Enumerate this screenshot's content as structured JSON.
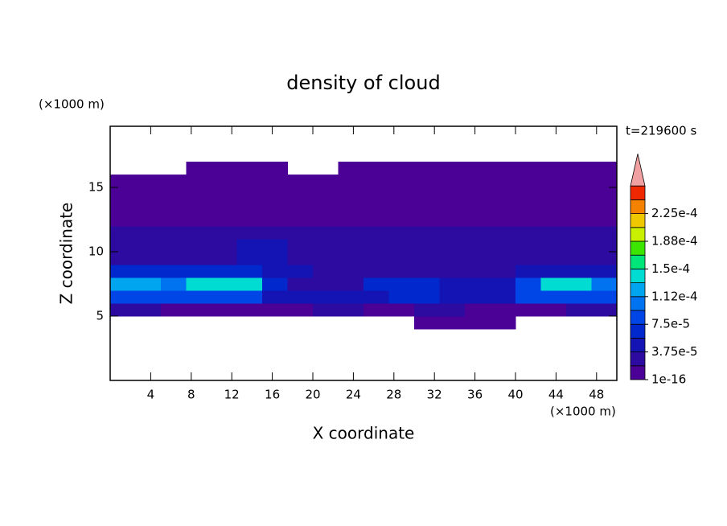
{
  "chart_data": {
    "type": "contour",
    "title": "density of cloud",
    "y_unit": "(×1000 m)",
    "x_unit": "(×1000 m)",
    "time_label": "t=219600 s",
    "xlabel": "X coordinate",
    "ylabel": "Z coordinate",
    "xlim": [
      0,
      50
    ],
    "ylim": [
      0,
      19.75
    ],
    "xticks": [
      4,
      8,
      12,
      16,
      20,
      24,
      28,
      32,
      36,
      40,
      44,
      48
    ],
    "yticks": [
      5,
      10,
      15
    ],
    "x": [
      1.25,
      3.75,
      6.25,
      8.75,
      11.25,
      13.75,
      16.25,
      18.75,
      21.25,
      23.75,
      26.25,
      28.75,
      31.25,
      33.75,
      36.25,
      38.75,
      41.25,
      43.75,
      46.25,
      48.75
    ],
    "y": [
      4.5,
      5.5,
      6.5,
      7.5,
      8.5,
      9.5,
      10.5,
      11.5,
      12.5,
      13.5,
      14.5,
      15.5,
      16.5
    ],
    "values": [
      [
        null,
        null,
        null,
        null,
        null,
        null,
        null,
        null,
        null,
        null,
        null,
        null,
        5e-06,
        5e-06,
        5e-06,
        5e-06,
        null,
        null,
        null,
        null
      ],
      [
        2e-05,
        2e-05,
        5e-06,
        5e-06,
        5e-06,
        5e-06,
        5e-06,
        5e-06,
        2e-05,
        2e-05,
        5e-06,
        5e-06,
        2e-05,
        2e-05,
        5e-06,
        5e-06,
        5e-06,
        5e-06,
        2e-05,
        2e-05
      ],
      [
        9e-05,
        9e-05,
        9e-05,
        9e-05,
        9e-05,
        9e-05,
        5e-05,
        4e-05,
        4e-05,
        4e-05,
        4e-05,
        6e-05,
        6e-05,
        5e-05,
        5e-05,
        5e-05,
        9e-05,
        9e-05,
        9e-05,
        9e-05
      ],
      [
        0.00012,
        0.00012,
        0.0001,
        0.00014,
        0.00014,
        0.00014,
        6e-05,
        3e-05,
        3e-05,
        3e-05,
        7e-05,
        7e-05,
        7e-05,
        5e-05,
        5e-05,
        5e-05,
        8e-05,
        0.00014,
        0.00014,
        0.00011
      ],
      [
        6e-05,
        6e-05,
        6e-05,
        6e-05,
        6e-05,
        6e-05,
        4e-05,
        4e-05,
        3e-05,
        3e-05,
        3e-05,
        3e-05,
        3e-05,
        3e-05,
        3e-05,
        3e-05,
        5e-05,
        5e-05,
        5e-05,
        5e-05
      ],
      [
        3e-05,
        3e-05,
        3e-05,
        3e-05,
        3e-05,
        5e-05,
        5e-05,
        3e-05,
        3e-05,
        3e-05,
        3e-05,
        3e-05,
        3e-05,
        3e-05,
        3e-05,
        3e-05,
        3e-05,
        3e-05,
        3e-05,
        3e-05
      ],
      [
        2.5e-05,
        2.5e-05,
        2.5e-05,
        2.5e-05,
        2.5e-05,
        4e-05,
        4e-05,
        2.5e-05,
        2.5e-05,
        2.5e-05,
        2.5e-05,
        2.5e-05,
        2.5e-05,
        2.5e-05,
        2.5e-05,
        2.5e-05,
        2.5e-05,
        2.5e-05,
        2.5e-05,
        2.5e-05
      ],
      [
        2e-05,
        2e-05,
        2e-05,
        2e-05,
        2e-05,
        2e-05,
        2e-05,
        2e-05,
        2e-05,
        2e-05,
        2e-05,
        2e-05,
        2e-05,
        2e-05,
        2e-05,
        2e-05,
        2e-05,
        2e-05,
        2e-05,
        2e-05
      ],
      [
        5e-06,
        5e-06,
        5e-06,
        5e-06,
        5e-06,
        5e-06,
        5e-06,
        5e-06,
        5e-06,
        5e-06,
        5e-06,
        5e-06,
        5e-06,
        5e-06,
        5e-06,
        5e-06,
        5e-06,
        5e-06,
        5e-06,
        5e-06
      ],
      [
        5e-06,
        5e-06,
        5e-06,
        5e-06,
        5e-06,
        5e-06,
        5e-06,
        5e-06,
        5e-06,
        5e-06,
        5e-06,
        5e-06,
        5e-06,
        5e-06,
        5e-06,
        5e-06,
        5e-06,
        5e-06,
        5e-06,
        5e-06
      ],
      [
        5e-06,
        5e-06,
        5e-06,
        5e-06,
        5e-06,
        5e-06,
        5e-06,
        5e-06,
        5e-06,
        5e-06,
        5e-06,
        5e-06,
        5e-06,
        5e-06,
        5e-06,
        5e-06,
        5e-06,
        5e-06,
        5e-06,
        5e-06
      ],
      [
        5e-06,
        5e-06,
        5e-06,
        5e-06,
        5e-06,
        5e-06,
        5e-06,
        5e-06,
        5e-06,
        5e-06,
        5e-06,
        5e-06,
        5e-06,
        5e-06,
        5e-06,
        5e-06,
        5e-06,
        5e-06,
        5e-06,
        5e-06
      ],
      [
        null,
        null,
        null,
        5e-06,
        5e-06,
        5e-06,
        5e-06,
        null,
        null,
        5e-06,
        5e-06,
        5e-06,
        5e-06,
        5e-06,
        5e-06,
        5e-06,
        5e-06,
        5e-06,
        5e-06,
        5e-06
      ]
    ],
    "levels": [
      1e-16,
      1.875e-05,
      3.75e-05,
      5.625e-05,
      7.5e-05,
      9.375e-05,
      0.0001125,
      0.00013125,
      0.00015,
      0.00016875,
      0.0001875,
      0.00020625,
      0.000225,
      0.00024375
    ],
    "level_colors": [
      "#4b0096",
      "#2d0aa0",
      "#1414b4",
      "#0028cc",
      "#0046e6",
      "#0073f0",
      "#00a5f0",
      "#00dcd2",
      "#00e678",
      "#3ce600",
      "#c8f000",
      "#f0c800",
      "#f58200",
      "#f02800"
    ],
    "extend_color": "#f0a0a0",
    "colorbar_ticks": [
      {
        "value": 1e-16,
        "label": "1e-16"
      },
      {
        "value": 3.75e-05,
        "label": "3.75e-5"
      },
      {
        "value": 7.5e-05,
        "label": "7.5e-5"
      },
      {
        "value": 0.0001125,
        "label": "1.12e-4"
      },
      {
        "value": 0.00015,
        "label": "1.5e-4"
      },
      {
        "value": 0.0001875,
        "label": "1.88e-4"
      },
      {
        "value": 0.000225,
        "label": "2.25e-4"
      }
    ]
  }
}
